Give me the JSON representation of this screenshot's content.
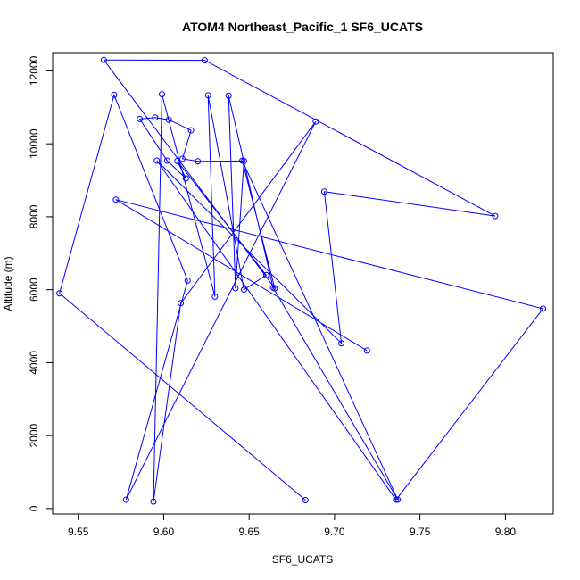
{
  "chart_data": {
    "type": "line",
    "title": "ATOM4 Northeast_Pacific_1 SF6_UCATS",
    "xlabel": "SF6_UCATS",
    "ylabel": "Altitude (m)",
    "xlim": [
      9.535,
      9.828
    ],
    "ylim": [
      -150,
      12500
    ],
    "xticks": [
      9.55,
      9.6,
      9.65,
      9.7,
      9.75,
      9.8
    ],
    "xtick_labels": [
      "9.55",
      "9.60",
      "9.65",
      "9.70",
      "9.75",
      "9.80"
    ],
    "yticks": [
      0,
      2000,
      4000,
      6000,
      8000,
      10000,
      12000
    ],
    "ytick_labels": [
      "0",
      "2000",
      "4000",
      "6000",
      "8000",
      "10000",
      "12000"
    ],
    "grid": false,
    "color": "#0000ff",
    "series": [
      {
        "x": [
          9.683,
          9.539,
          9.571,
          9.614,
          9.578,
          9.689,
          9.61,
          9.594,
          9.599,
          9.63,
          9.626,
          9.647,
          9.66,
          9.608,
          9.613,
          9.602,
          9.586,
          9.595,
          9.603,
          9.616,
          9.611,
          9.62,
          9.647,
          9.642,
          9.638,
          9.664,
          9.737,
          9.646,
          9.665,
          9.565,
          9.624,
          9.794,
          9.694,
          9.704,
          9.596,
          9.736,
          9.822,
          9.572,
          9.719
        ],
        "y": [
          230,
          5900,
          11340,
          6250,
          240,
          10610,
          5630,
          190,
          11360,
          5810,
          11330,
          6000,
          6400,
          9530,
          9050,
          9540,
          10680,
          10720,
          10660,
          10370,
          9590,
          9520,
          9530,
          6040,
          11320,
          6060,
          240,
          9540,
          6040,
          12300,
          12290,
          8020,
          8690,
          4530,
          9540,
          240,
          5480,
          8470,
          4330
        ]
      }
    ]
  }
}
